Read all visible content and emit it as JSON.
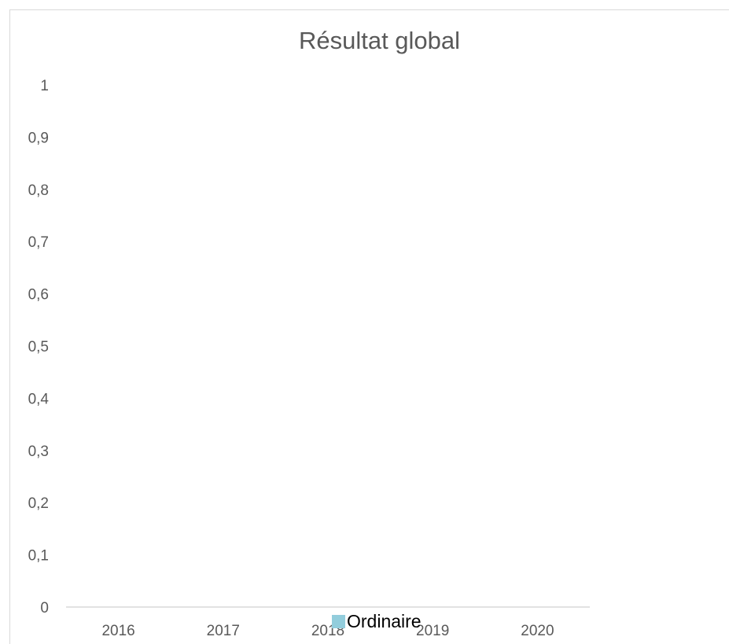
{
  "chart_data": {
    "type": "bar",
    "title": "Résultat global",
    "categories": [
      "2016",
      "2017",
      "2018",
      "2019",
      "2020"
    ],
    "series": [
      {
        "name": "Ordinaire",
        "values": [
          0,
          0,
          0,
          0,
          0
        ],
        "color": "#92cddc"
      }
    ],
    "ylim": [
      0,
      1
    ],
    "yticks": [
      "0",
      "0,1",
      "0,2",
      "0,3",
      "0,4",
      "0,5",
      "0,6",
      "0,7",
      "0,8",
      "0,9",
      "1"
    ],
    "grid": false,
    "legend": "bottom",
    "colors": {
      "axis": "#d9d9d9",
      "tick_text": "#595959",
      "title": "#595959"
    }
  }
}
